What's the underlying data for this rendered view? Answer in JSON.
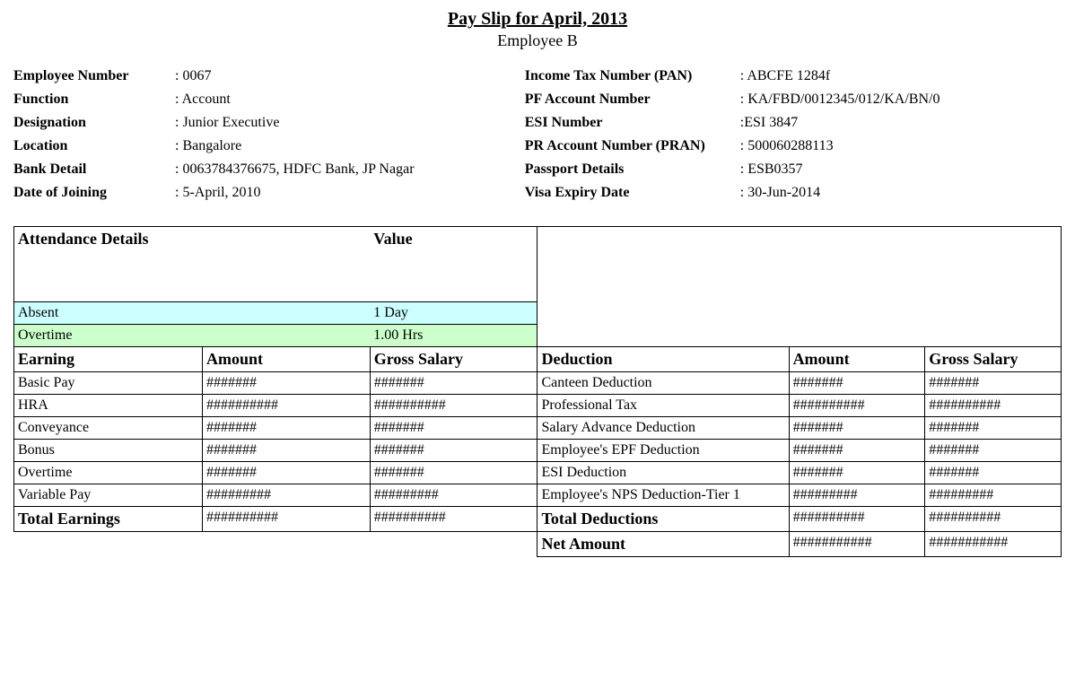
{
  "header": {
    "title": "Pay Slip for April, 2013",
    "subtitle": "Employee B"
  },
  "employee_info_left": [
    {
      "label": "Employee Number",
      "value": ": 0067"
    },
    {
      "label": "Function",
      "value": ": Account"
    },
    {
      "label": "Designation",
      "value": ": Junior Executive"
    },
    {
      "label": "Location",
      "value": ": Bangalore"
    },
    {
      "label": "Bank Detail",
      "value": ": 0063784376675, HDFC Bank, JP Nagar"
    },
    {
      "label": "Date of Joining",
      "value": ": 5-April, 2010"
    }
  ],
  "employee_info_right": [
    {
      "label": "Income Tax Number (PAN)",
      "value": ": ABCFE 1284f"
    },
    {
      "label": "PF Account Number",
      "value": ": KA/FBD/0012345/012/KA/BN/0"
    },
    {
      "label": "ESI Number",
      "value": ":ESI 3847"
    },
    {
      "label": "PR Account Number (PRAN)",
      "value": ": 500060288113"
    },
    {
      "label": "Passport Details",
      "value": ": ESB0357"
    },
    {
      "label": "Visa Expiry Date",
      "value": ": 30-Jun-2014"
    }
  ],
  "attendance": {
    "header_label": "Attendance Details",
    "header_value": "Value",
    "rows": [
      {
        "label": "Absent",
        "value": "1 Day",
        "bg": "bg-cyan"
      },
      {
        "label": "Overtime",
        "value": "1.00 Hrs",
        "bg": "bg-green"
      }
    ]
  },
  "section_headers": {
    "earning": "Earning",
    "amount": "Amount",
    "gross_salary": "Gross Salary",
    "deduction": "Deduction"
  },
  "earnings": [
    {
      "label": "Basic Pay",
      "amount": "#######",
      "gross": "#######"
    },
    {
      "label": "HRA",
      "amount": "##########",
      "gross": "##########"
    },
    {
      "label": "Conveyance",
      "amount": "#######",
      "gross": "#######"
    },
    {
      "label": "Bonus",
      "amount": "#######",
      "gross": "#######"
    },
    {
      "label": "Overtime",
      "amount": "#######",
      "gross": "#######"
    },
    {
      "label": "Variable Pay",
      "amount": "#########",
      "gross": "#########"
    }
  ],
  "deductions": [
    {
      "label": "Canteen Deduction",
      "amount": "#######",
      "gross": "#######"
    },
    {
      "label": "Professional Tax",
      "amount": "##########",
      "gross": "##########"
    },
    {
      "label": "Salary Advance Deduction",
      "amount": "#######",
      "gross": "#######"
    },
    {
      "label": "Employee's EPF Deduction",
      "amount": "#######",
      "gross": "#######"
    },
    {
      "label": "ESI Deduction",
      "amount": "#######",
      "gross": "#######"
    },
    {
      "label": "Employee's NPS Deduction-Tier 1",
      "amount": "#########",
      "gross": "#########"
    }
  ],
  "totals": {
    "earnings_label": "Total Earnings",
    "earnings_amount": "##########",
    "earnings_gross": "##########",
    "deductions_label": "Total Deductions",
    "deductions_amount": "##########",
    "deductions_gross": "##########",
    "net_label": "Net Amount",
    "net_amount": "###########",
    "net_gross": "###########"
  }
}
